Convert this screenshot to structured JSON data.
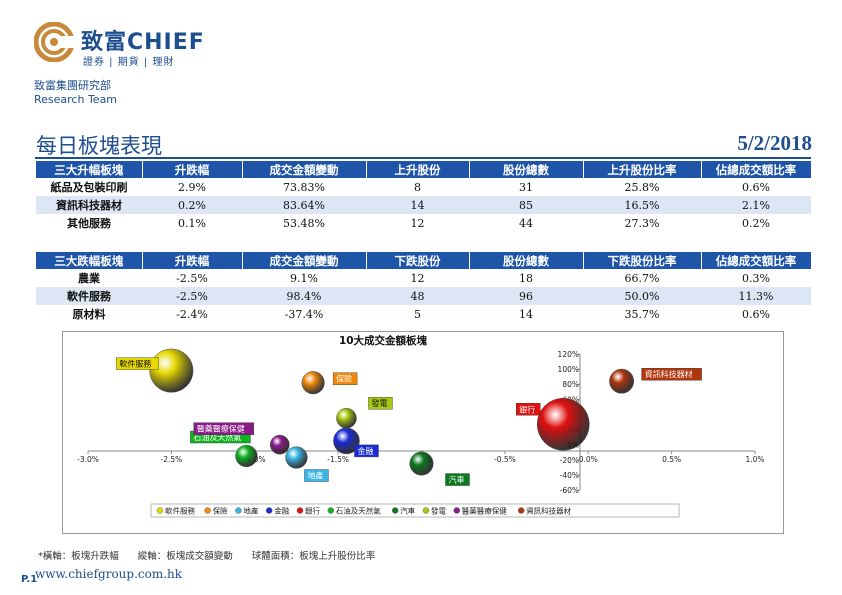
{
  "header": {
    "brand": "致富CHIEF",
    "brand_sub": "證券 | 期貨 | 理財",
    "dept_zh": "致富集團研究部",
    "dept_en": "Research Team"
  },
  "title": "每日板塊表現",
  "date": "5/2/2018",
  "table_up": {
    "headers": [
      "三大升幅板塊",
      "升跌幅",
      "成交金額變動",
      "上升股份",
      "股份總數",
      "上升股份比率",
      "佔總成交額比率"
    ],
    "rows": [
      [
        "紙品及包裝印刷",
        "2.9%",
        "73.83%",
        "8",
        "31",
        "25.8%",
        "0.6%"
      ],
      [
        "資訊科技器材",
        "0.2%",
        "83.64%",
        "14",
        "85",
        "16.5%",
        "2.1%"
      ],
      [
        "其他服務",
        "0.1%",
        "53.48%",
        "12",
        "44",
        "27.3%",
        "0.2%"
      ]
    ]
  },
  "table_down": {
    "headers": [
      "三大跌幅板塊",
      "升跌幅",
      "成交金額變動",
      "下跌股份",
      "股份總數",
      "下跌股份比率",
      "佔總成交額比率"
    ],
    "rows": [
      [
        "農業",
        "-2.5%",
        "9.1%",
        "12",
        "18",
        "66.7%",
        "0.3%"
      ],
      [
        "軟件服務",
        "-2.5%",
        "98.4%",
        "48",
        "96",
        "50.0%",
        "11.3%"
      ],
      [
        "原材料",
        "-2.4%",
        "-37.4%",
        "5",
        "14",
        "35.7%",
        "0.6%"
      ]
    ]
  },
  "chart_data": {
    "type": "scatter",
    "title": "10大成交金額板塊",
    "x_ticks": [
      "-3.0%",
      "-2.5%",
      "-2.0%",
      "-1.5%",
      "-1.0%",
      "-0.5%",
      "0.0%",
      "0.5%",
      "1.0%"
    ],
    "y_ticks": [
      "120%",
      "100%",
      "80%",
      "60%",
      "40%",
      "20%",
      "0%",
      "-20%",
      "-40%",
      "-60%"
    ],
    "xlim": [
      -3.0,
      1.0
    ],
    "ylim": [
      -60,
      120
    ],
    "legend_position": "bottom",
    "points": [
      {
        "name": "軟件服務",
        "x": -2.5,
        "y": 98,
        "size": 50,
        "color": "#e6d800"
      },
      {
        "name": "保險",
        "x": -1.65,
        "y": 82,
        "size": 26,
        "color": "#f0880a"
      },
      {
        "name": "地產",
        "x": -1.75,
        "y": -17,
        "size": 25,
        "color": "#3ab6e6"
      },
      {
        "name": "金融",
        "x": -1.45,
        "y": 5,
        "size": 30,
        "color": "#1b2bd6"
      },
      {
        "name": "銀行",
        "x": -0.15,
        "y": 27,
        "size": 60,
        "color": "#e01010"
      },
      {
        "name": "石油及天然氣",
        "x": -2.05,
        "y": -15,
        "size": 25,
        "color": "#12b322"
      },
      {
        "name": "汽車",
        "x": -1.0,
        "y": -25,
        "size": 27,
        "color": "#0c7a20"
      },
      {
        "name": "發電",
        "x": -1.45,
        "y": 35,
        "size": 23,
        "color": "#a6c810"
      },
      {
        "name": "醫藥醫療保健",
        "x": -1.85,
        "y": 0,
        "size": 22,
        "color": "#8a1a8a"
      },
      {
        "name": "資訊科技器材",
        "x": 0.2,
        "y": 84,
        "size": 28,
        "color": "#b0360e"
      }
    ]
  },
  "footnote": "*橫軸：板塊升跌幅　　縱軸：板塊成交額變動　　球體面積：板塊上升股份比率",
  "page_num": "P.1",
  "website": "www.chiefgroup.com.hk"
}
